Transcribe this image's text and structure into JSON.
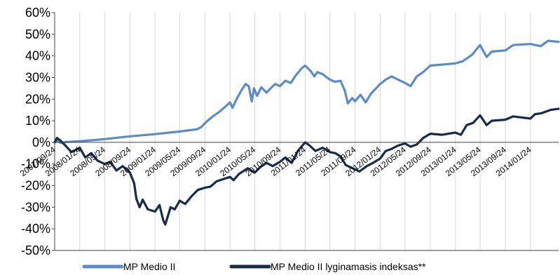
{
  "chart_data": {
    "type": "line",
    "title": "",
    "xlabel": "",
    "ylabel": "",
    "x_ticks": [
      "2007/09/24",
      "2008/01/24",
      "2008/05/24",
      "2008/09/24",
      "2009/01/24",
      "2009/05/24",
      "2009/09/24",
      "2010/01/24",
      "2010/05/24",
      "2010/09/24",
      "2011/01/24",
      "2011/05/24",
      "2011/09/24",
      "2012/01/24",
      "2012/05/24",
      "2012/09/24",
      "2013/01/24",
      "2013/05/24",
      "2013/09/24",
      "2014/01/24"
    ],
    "y_ticks": [
      "60%",
      "50%",
      "40%",
      "30%",
      "20%",
      "10%",
      "0%",
      "-10%",
      "-20%",
      "-30%",
      "-40%",
      "-50%"
    ],
    "ylim": [
      -50,
      60
    ],
    "xlim": [
      "2007/09/24",
      "2014/06/10"
    ],
    "grid": "vertical",
    "legend": "bottom",
    "series": [
      {
        "name": "MP Medio II",
        "color": "#5b8cc9",
        "points": [
          [
            "2007/09/24",
            0
          ],
          [
            "2007/10/10",
            0.5
          ],
          [
            "2007/10/25",
            -0.3
          ],
          [
            "2007/11/20",
            0.2
          ],
          [
            "2008/01/24",
            0.5
          ],
          [
            "2008/05/24",
            1.5
          ],
          [
            "2008/09/24",
            2.8
          ],
          [
            "2009/01/24",
            3.8
          ],
          [
            "2009/05/24",
            5.0
          ],
          [
            "2009/07/01",
            5.5
          ],
          [
            "2009/08/15",
            6.0
          ],
          [
            "2009/09/05",
            7.0
          ],
          [
            "2009/10/01",
            9.5
          ],
          [
            "2009/11/01",
            12.0
          ],
          [
            "2009/12/01",
            14.0
          ],
          [
            "2010/01/01",
            16.5
          ],
          [
            "2010/01/24",
            18.5
          ],
          [
            "2010/02/05",
            16.0
          ],
          [
            "2010/02/25",
            20.0
          ],
          [
            "2010/03/20",
            24.0
          ],
          [
            "2010/04/10",
            27.0
          ],
          [
            "2010/04/25",
            26.0
          ],
          [
            "2010/05/10",
            19.0
          ],
          [
            "2010/05/20",
            25.0
          ],
          [
            "2010/06/05",
            21.5
          ],
          [
            "2010/06/25",
            25.5
          ],
          [
            "2010/07/20",
            23.0
          ],
          [
            "2010/08/15",
            25.5
          ],
          [
            "2010/09/01",
            27.0
          ],
          [
            "2010/09/24",
            26.0
          ],
          [
            "2010/10/20",
            28.5
          ],
          [
            "2010/11/15",
            27.5
          ],
          [
            "2010/12/10",
            31.0
          ],
          [
            "2011/01/10",
            34.5
          ],
          [
            "2011/01/24",
            35.5
          ],
          [
            "2011/02/20",
            33.0
          ],
          [
            "2011/03/10",
            30.5
          ],
          [
            "2011/03/25",
            32.5
          ],
          [
            "2011/04/20",
            31.5
          ],
          [
            "2011/05/24",
            29.0
          ],
          [
            "2011/06/20",
            28.0
          ],
          [
            "2011/07/15",
            28.5
          ],
          [
            "2011/08/05",
            24.0
          ],
          [
            "2011/08/20",
            18.0
          ],
          [
            "2011/09/10",
            20.5
          ],
          [
            "2011/09/24",
            19.0
          ],
          [
            "2011/10/20",
            22.0
          ],
          [
            "2011/11/15",
            18.5
          ],
          [
            "2011/12/10",
            22.5
          ],
          [
            "2012/01/24",
            27.0
          ],
          [
            "2012/02/20",
            29.0
          ],
          [
            "2012/03/20",
            30.5
          ],
          [
            "2012/04/20",
            29.0
          ],
          [
            "2012/05/24",
            27.5
          ],
          [
            "2012/06/20",
            26.0
          ],
          [
            "2012/07/20",
            30.5
          ],
          [
            "2012/08/20",
            32.5
          ],
          [
            "2012/09/24",
            35.5
          ],
          [
            "2013/01/24",
            36.5
          ],
          [
            "2013/03/01",
            37.5
          ],
          [
            "2013/04/15",
            40.5
          ],
          [
            "2013/05/24",
            45.0
          ],
          [
            "2013/06/25",
            39.5
          ],
          [
            "2013/07/20",
            42.0
          ],
          [
            "2013/09/24",
            42.5
          ],
          [
            "2013/11/01",
            45.0
          ],
          [
            "2014/01/24",
            45.5
          ],
          [
            "2014/03/15",
            44.5
          ],
          [
            "2014/04/20",
            47.0
          ],
          [
            "2014/06/10",
            46.5
          ]
        ]
      },
      {
        "name": "MP Medio II lyginamasis indeksas**",
        "color": "#172b4d",
        "points": [
          [
            "2007/09/24",
            0
          ],
          [
            "2007/10/05",
            2.0
          ],
          [
            "2007/10/20",
            1.0
          ],
          [
            "2007/11/15",
            -1.5
          ],
          [
            "2007/12/15",
            -4.5
          ],
          [
            "2008/01/24",
            -2.5
          ],
          [
            "2008/02/20",
            -7.0
          ],
          [
            "2008/03/20",
            -5.0
          ],
          [
            "2008/04/20",
            -8.5
          ],
          [
            "2008/05/24",
            -10.0
          ],
          [
            "2008/06/20",
            -9.0
          ],
          [
            "2008/07/20",
            -13.0
          ],
          [
            "2008/08/20",
            -11.0
          ],
          [
            "2008/09/24",
            -14.0
          ],
          [
            "2008/10/15",
            -19.0
          ],
          [
            "2008/10/25",
            -26.0
          ],
          [
            "2008/11/10",
            -30.0
          ],
          [
            "2008/11/25",
            -26.5
          ],
          [
            "2008/12/20",
            -31.0
          ],
          [
            "2009/01/24",
            -32.0
          ],
          [
            "2009/02/15",
            -29.0
          ],
          [
            "2009/03/05",
            -36.0
          ],
          [
            "2009/03/15",
            -38.0
          ],
          [
            "2009/04/10",
            -30.0
          ],
          [
            "2009/04/30",
            -31.0
          ],
          [
            "2009/05/24",
            -27.0
          ],
          [
            "2009/06/20",
            -28.5
          ],
          [
            "2009/07/20",
            -25.0
          ],
          [
            "2009/08/20",
            -22.0
          ],
          [
            "2009/09/24",
            -21.0
          ],
          [
            "2009/10/20",
            -20.5
          ],
          [
            "2009/11/20",
            -18.0
          ],
          [
            "2010/01/24",
            -16.0
          ],
          [
            "2010/02/10",
            -17.5
          ],
          [
            "2010/03/10",
            -14.5
          ],
          [
            "2010/04/20",
            -12.0
          ],
          [
            "2010/05/24",
            -14.0
          ],
          [
            "2010/06/20",
            -11.5
          ],
          [
            "2010/07/20",
            -9.5
          ],
          [
            "2010/08/20",
            -11.0
          ],
          [
            "2010/09/24",
            -9.0
          ],
          [
            "2010/10/20",
            -7.0
          ],
          [
            "2010/11/20",
            -9.5
          ],
          [
            "2010/12/20",
            -4.0
          ],
          [
            "2011/01/24",
            0.0
          ],
          [
            "2011/02/15",
            -1.5
          ],
          [
            "2011/03/15",
            -4.0
          ],
          [
            "2011/04/20",
            -2.5
          ],
          [
            "2011/05/24",
            -4.5
          ],
          [
            "2011/06/20",
            -5.0
          ],
          [
            "2011/07/15",
            -6.5
          ],
          [
            "2011/08/10",
            -10.5
          ],
          [
            "2011/09/24",
            -12.5
          ],
          [
            "2011/10/15",
            -13.5
          ],
          [
            "2011/11/20",
            -11.0
          ],
          [
            "2011/12/20",
            -9.5
          ],
          [
            "2012/01/24",
            -7.5
          ],
          [
            "2012/02/20",
            -4.0
          ],
          [
            "2012/03/20",
            -3.0
          ],
          [
            "2012/04/20",
            -1.5
          ],
          [
            "2012/05/24",
            -0.5
          ],
          [
            "2012/06/20",
            -2.0
          ],
          [
            "2012/07/20",
            -1.0
          ],
          [
            "2012/08/20",
            2.0
          ],
          [
            "2012/09/24",
            4.0
          ],
          [
            "2012/11/20",
            3.5
          ],
          [
            "2013/01/24",
            4.5
          ],
          [
            "2013/02/20",
            3.5
          ],
          [
            "2013/03/20",
            8.0
          ],
          [
            "2013/04/20",
            9.0
          ],
          [
            "2013/05/24",
            12.5
          ],
          [
            "2013/06/25",
            8.0
          ],
          [
            "2013/07/20",
            10.0
          ],
          [
            "2013/09/24",
            10.5
          ],
          [
            "2013/11/01",
            12.0
          ],
          [
            "2014/01/24",
            11.0
          ],
          [
            "2014/02/15",
            13.0
          ],
          [
            "2014/03/20",
            13.5
          ],
          [
            "2014/05/01",
            15.0
          ],
          [
            "2014/06/10",
            15.5
          ]
        ]
      }
    ]
  }
}
